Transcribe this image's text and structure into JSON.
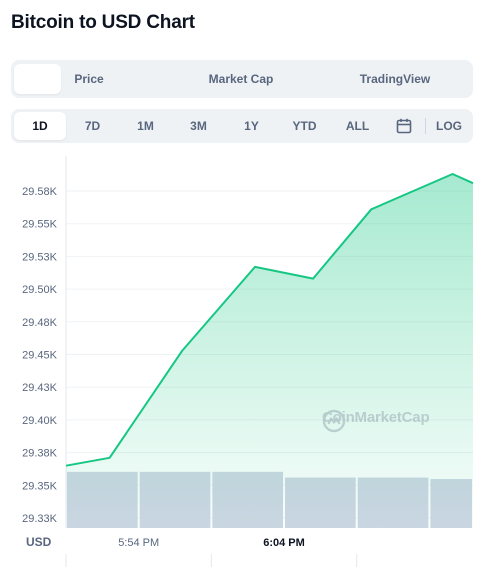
{
  "page": {
    "title": "Bitcoin to USD Chart"
  },
  "tabs": [
    {
      "label": "",
      "active": true
    },
    {
      "label": "Price",
      "active": false
    },
    {
      "label": "Market Cap",
      "active": false
    },
    {
      "label": "TradingView",
      "active": false
    }
  ],
  "ranges": [
    {
      "label": "1D",
      "active": true
    },
    {
      "label": "7D",
      "active": false
    },
    {
      "label": "1M",
      "active": false
    },
    {
      "label": "3M",
      "active": false
    },
    {
      "label": "1Y",
      "active": false
    },
    {
      "label": "YTD",
      "active": false
    },
    {
      "label": "ALL",
      "active": false
    }
  ],
  "range_icons": {
    "calendar": "calendar-icon"
  },
  "log_label": "LOG",
  "currency": "USD",
  "watermark": {
    "text": "CoinMarketCap",
    "icon": "coinmarketcap-logo-icon"
  },
  "colors": {
    "line": "#16c784",
    "fill_top": "#16c784",
    "volume": "#cfd6e4",
    "text_secondary": "#58667e"
  },
  "chart_data": {
    "type": "line",
    "title": "",
    "xlabel": "",
    "ylabel": "USD",
    "y_tick_labels": [
      "29.58K",
      "29.55K",
      "29.53K",
      "29.50K",
      "29.48K",
      "29.45K",
      "29.43K",
      "29.40K",
      "29.38K",
      "29.35K",
      "29.33K"
    ],
    "y_tick_values": [
      29580,
      29555,
      29530,
      29505,
      29480,
      29455,
      29430,
      29405,
      29380,
      29355,
      29330
    ],
    "ylim": [
      29320,
      29590
    ],
    "x_tick_labels": [
      {
        "label": "5:54 PM",
        "time_min": 1074,
        "bold": false
      },
      {
        "label": "6:04 PM",
        "time_min": 1084,
        "bold": true
      }
    ],
    "xlim_min": [
      1069,
      1097
    ],
    "series": [
      {
        "values": [
          {
            "t": 1069.0,
            "v": 29370
          },
          {
            "t": 1072.0,
            "v": 29376
          },
          {
            "t": 1077.0,
            "v": 29458
          },
          {
            "t": 1082.0,
            "v": 29522
          },
          {
            "t": 1086.0,
            "v": 29513
          },
          {
            "t": 1090.0,
            "v": 29566
          },
          {
            "t": 1095.6,
            "v": 29593
          },
          {
            "t": 1097.0,
            "v": 29586
          }
        ]
      }
    ],
    "volume_bars": [
      {
        "t_start": 1069.0,
        "t_end": 1074.0,
        "level": 0.78
      },
      {
        "t_start": 1074.0,
        "t_end": 1079.0,
        "level": 0.78
      },
      {
        "t_start": 1079.0,
        "t_end": 1084.0,
        "level": 0.78
      },
      {
        "t_start": 1084.0,
        "t_end": 1089.0,
        "level": 0.7
      },
      {
        "t_start": 1089.0,
        "t_end": 1094.0,
        "level": 0.7
      },
      {
        "t_start": 1094.0,
        "t_end": 1097.0,
        "level": 0.68
      }
    ],
    "grid": true
  }
}
